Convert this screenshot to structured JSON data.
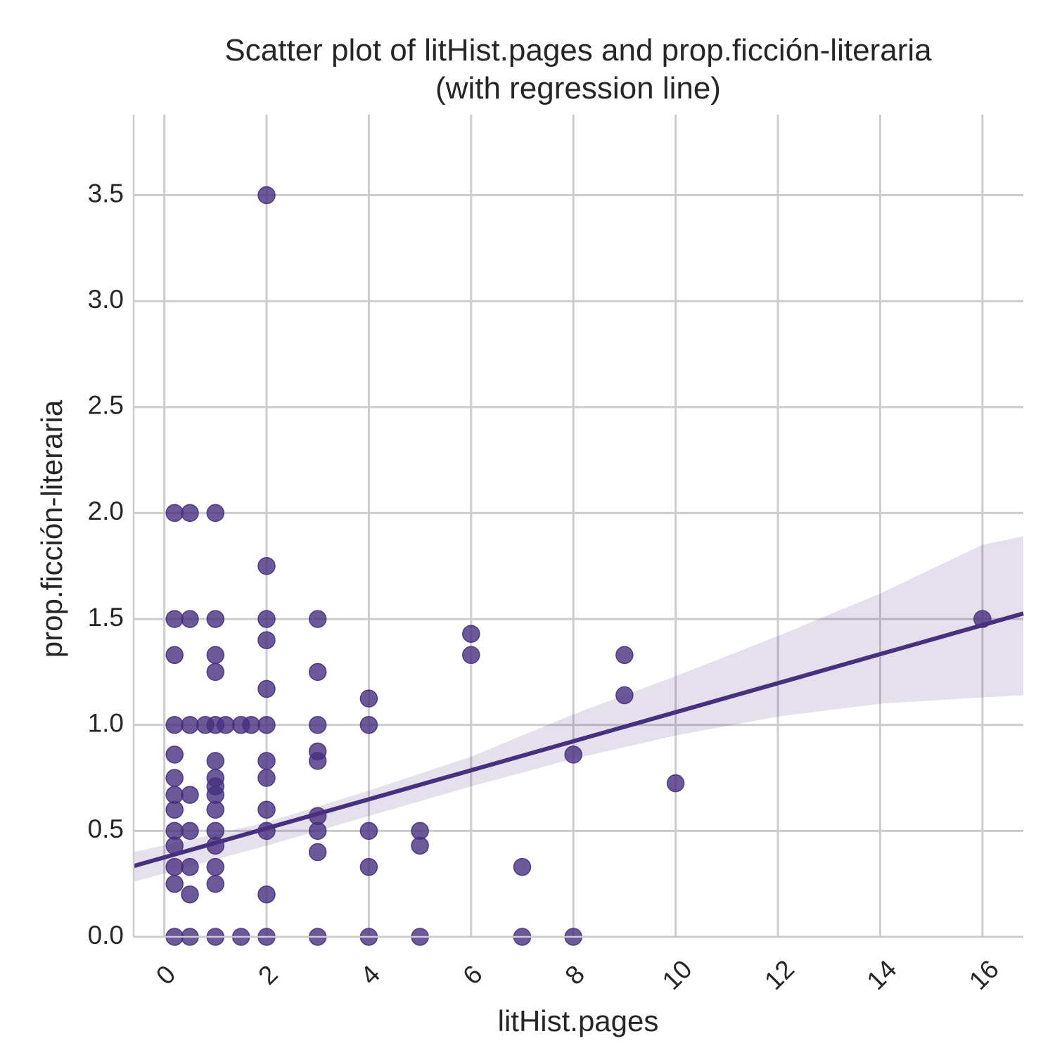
{
  "chart_data": {
    "type": "scatter",
    "title_line1": "Scatter plot of litHist.pages and prop.ficción-literaria",
    "title_line2": "(with regression line)",
    "xlabel": "litHist.pages",
    "ylabel": "prop.ficción-literaria",
    "xlim": [
      -0.6,
      16.8
    ],
    "ylim": [
      0,
      3.88
    ],
    "xticks": [
      0,
      2,
      4,
      6,
      8,
      10,
      12,
      14,
      16
    ],
    "yticks": [
      0.0,
      0.5,
      1.0,
      1.5,
      2.0,
      2.5,
      3.0,
      3.5
    ],
    "ytick_labels": [
      "0.0",
      "0.5",
      "1.0",
      "1.5",
      "2.0",
      "2.5",
      "3.0",
      "3.5"
    ],
    "grid": true,
    "point_color": "#47307f",
    "line_color": "#47307f",
    "band_color": "#47307f",
    "regression": {
      "intercept": 0.375,
      "slope": 0.0685
    },
    "confidence_band": {
      "x": [
        -0.6,
        2,
        4,
        6,
        8,
        10,
        12,
        14,
        16,
        16.8
      ],
      "lower": [
        0.26,
        0.43,
        0.57,
        0.71,
        0.84,
        0.95,
        1.04,
        1.1,
        1.13,
        1.14
      ],
      "upper": [
        0.4,
        0.54,
        0.69,
        0.85,
        1.05,
        1.23,
        1.42,
        1.62,
        1.85,
        1.89
      ]
    },
    "points": [
      [
        0.2,
        2.0
      ],
      [
        0.5,
        2.0
      ],
      [
        1.0,
        2.0
      ],
      [
        2.0,
        3.5
      ],
      [
        2.0,
        1.75
      ],
      [
        0.2,
        1.5
      ],
      [
        0.5,
        1.5
      ],
      [
        1.0,
        1.5
      ],
      [
        2.0,
        1.5
      ],
      [
        3.0,
        1.5
      ],
      [
        2.0,
        1.4
      ],
      [
        0.2,
        1.33
      ],
      [
        1.0,
        1.33
      ],
      [
        1.0,
        1.25
      ],
      [
        3.0,
        1.25
      ],
      [
        2.0,
        1.17
      ],
      [
        4.0,
        1.125
      ],
      [
        0.2,
        1.0
      ],
      [
        0.5,
        1.0
      ],
      [
        0.8,
        1.0
      ],
      [
        1.0,
        1.0
      ],
      [
        1.2,
        1.0
      ],
      [
        1.5,
        1.0
      ],
      [
        1.7,
        1.0
      ],
      [
        2.0,
        1.0
      ],
      [
        3.0,
        1.0
      ],
      [
        4.0,
        1.0
      ],
      [
        3.0,
        0.875
      ],
      [
        0.2,
        0.86
      ],
      [
        1.0,
        0.83
      ],
      [
        2.0,
        0.83
      ],
      [
        3.0,
        0.83
      ],
      [
        0.2,
        0.75
      ],
      [
        1.0,
        0.75
      ],
      [
        2.0,
        0.75
      ],
      [
        1.0,
        0.71
      ],
      [
        0.2,
        0.67
      ],
      [
        0.5,
        0.67
      ],
      [
        1.0,
        0.67
      ],
      [
        0.2,
        0.6
      ],
      [
        1.0,
        0.6
      ],
      [
        2.0,
        0.6
      ],
      [
        3.0,
        0.57
      ],
      [
        0.2,
        0.5
      ],
      [
        0.5,
        0.5
      ],
      [
        1.0,
        0.5
      ],
      [
        2.0,
        0.5
      ],
      [
        3.0,
        0.5
      ],
      [
        4.0,
        0.5
      ],
      [
        5.0,
        0.5
      ],
      [
        0.2,
        0.43
      ],
      [
        1.0,
        0.43
      ],
      [
        5.0,
        0.43
      ],
      [
        3.0,
        0.4
      ],
      [
        0.2,
        0.33
      ],
      [
        0.5,
        0.33
      ],
      [
        1.0,
        0.33
      ],
      [
        4.0,
        0.33
      ],
      [
        7.0,
        0.33
      ],
      [
        0.2,
        0.25
      ],
      [
        1.0,
        0.25
      ],
      [
        0.5,
        0.2
      ],
      [
        2.0,
        0.2
      ],
      [
        6.0,
        1.43
      ],
      [
        6.0,
        1.33
      ],
      [
        8.0,
        0.86
      ],
      [
        9.0,
        1.33
      ],
      [
        9.0,
        1.14
      ],
      [
        10.0,
        0.725
      ],
      [
        16.0,
        1.5
      ],
      [
        0.2,
        0.0
      ],
      [
        0.5,
        0.0
      ],
      [
        1.0,
        0.0
      ],
      [
        1.5,
        0.0
      ],
      [
        2.0,
        0.0
      ],
      [
        3.0,
        0.0
      ],
      [
        4.0,
        0.0
      ],
      [
        5.0,
        0.0
      ],
      [
        7.0,
        0.0
      ],
      [
        8.0,
        0.0
      ]
    ]
  }
}
